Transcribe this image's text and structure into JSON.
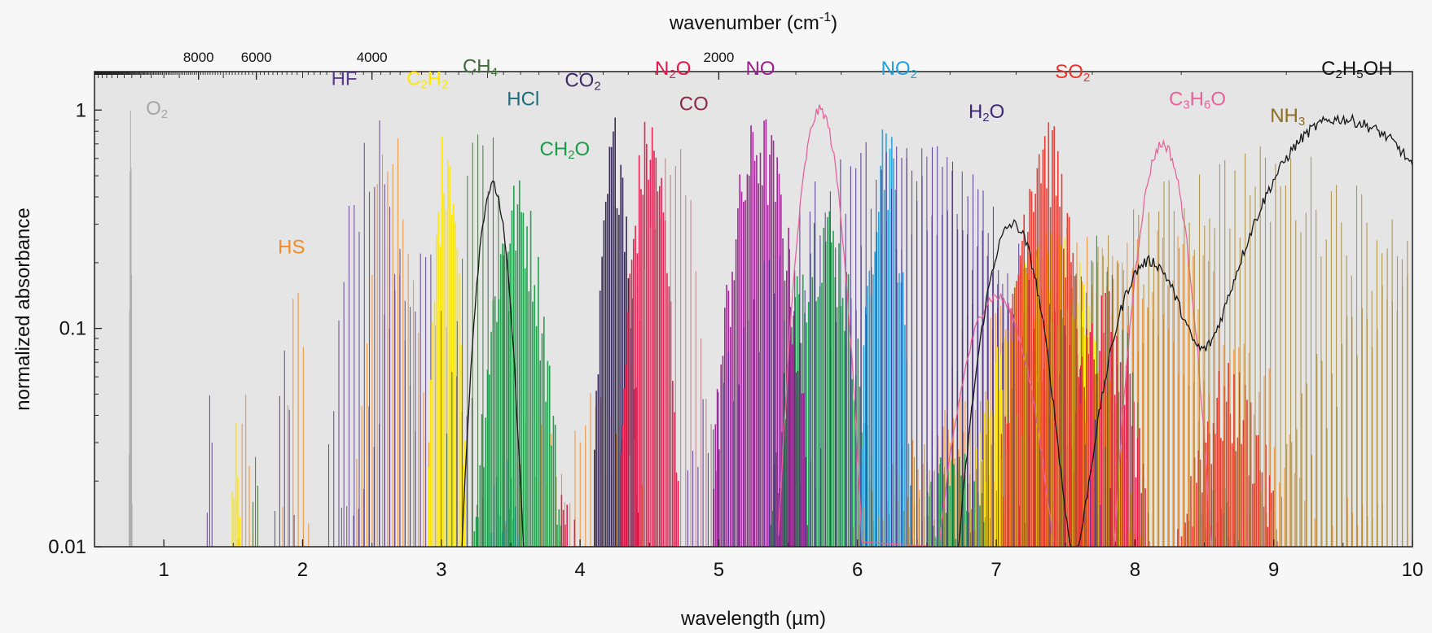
{
  "chart_data": {
    "type": "line",
    "title": "",
    "xlabel": "wavelength (µm)",
    "ylabel": "normalized absorbance",
    "x2label_base": "wavenumber (cm",
    "x2label_sup": "-1",
    "x2label_end": ")",
    "xlim": [
      0.5,
      10
    ],
    "ylim": [
      0.01,
      1.5
    ],
    "yscale": "log",
    "x_ticks": [
      1,
      2,
      3,
      4,
      5,
      6,
      7,
      8,
      9,
      10
    ],
    "x_tick_labels": [
      "1",
      "2",
      "3",
      "4",
      "5",
      "6",
      "7",
      "8",
      "9",
      "10"
    ],
    "y_ticks": [
      0.01,
      0.1,
      1
    ],
    "y_tick_labels": [
      "0.01",
      "0.1",
      "1"
    ],
    "x2_ticks": [
      8000,
      6000,
      4000,
      2000
    ],
    "x2_tick_labels": [
      "8000",
      "6000",
      "4000",
      "2000"
    ],
    "grid": false,
    "background": "#e5e5e5",
    "series": [
      {
        "name": "O₂",
        "color": "#a6a6a6",
        "style": "lines",
        "bands": [
          [
            0.76,
            0.004,
            1.0
          ]
        ]
      },
      {
        "name": "HS",
        "color": "#f28c28",
        "style": "lines",
        "bands": [
          [
            1.59,
            0.03,
            0.06
          ],
          [
            1.95,
            0.05,
            0.17
          ],
          [
            2.65,
            0.1,
            0.9
          ],
          [
            3.7,
            0.15,
            0.05
          ],
          [
            4.15,
            0.2,
            0.06
          ],
          [
            6.6,
            0.4,
            0.04
          ],
          [
            7.6,
            0.5,
            0.3
          ],
          [
            8.2,
            0.45,
            0.3
          ],
          [
            9.7,
            0.3,
            0.02
          ]
        ]
      },
      {
        "name": "HF",
        "color": "#5b3b8c",
        "style": "lines",
        "bands": [
          [
            1.33,
            0.02,
            0.05
          ],
          [
            1.87,
            0.04,
            0.08
          ],
          [
            2.5,
            0.12,
            1.0
          ],
          [
            2.85,
            0.2,
            0.3
          ],
          [
            6.5,
            0.35,
            0.7
          ],
          [
            7.1,
            0.3,
            0.2
          ]
        ]
      },
      {
        "name": "C₂H₂",
        "color": "#ffe600",
        "style": "fill",
        "bands": [
          [
            1.52,
            0.02,
            0.05
          ],
          [
            3.04,
            0.05,
            1.0
          ],
          [
            7.4,
            0.25,
            0.3
          ]
        ]
      },
      {
        "name": "CH₄",
        "color": "#3f6b3a",
        "style": "lines",
        "bands": [
          [
            1.66,
            0.02,
            0.03
          ],
          [
            2.3,
            0.05,
            0.02
          ],
          [
            3.3,
            0.1,
            1.0
          ],
          [
            7.65,
            0.2,
            0.3
          ]
        ]
      },
      {
        "name": "HCl",
        "color": "#1e9bd7",
        "style": "fill",
        "bands": [
          [
            3.46,
            0.08,
            0.03
          ]
        ]
      },
      {
        "name": "CO₂",
        "color": "#2c1f4d",
        "style": "fill",
        "bands": [
          [
            4.26,
            0.06,
            1.0
          ]
        ]
      },
      {
        "name": "CH₂O",
        "color": "#1a9b48",
        "style": "fill",
        "bands": [
          [
            3.55,
            0.12,
            0.5
          ],
          [
            5.75,
            0.15,
            0.4
          ],
          [
            6.7,
            0.2,
            0.03
          ],
          [
            8.6,
            0.15,
            0.02
          ]
        ]
      },
      {
        "name": "N₂O",
        "color": "#e8174a",
        "style": "fill",
        "bands": [
          [
            3.9,
            0.08,
            0.02
          ],
          [
            4.5,
            0.08,
            1.0
          ],
          [
            7.78,
            0.15,
            0.16
          ]
        ]
      },
      {
        "name": "CO",
        "color": "#b07882",
        "style": "lines",
        "bands": [
          [
            4.67,
            0.12,
            0.8
          ]
        ]
      },
      {
        "name": "NO",
        "color": "#9b1f8f",
        "style": "fill",
        "bands": [
          [
            5.3,
            0.13,
            1.0
          ]
        ]
      },
      {
        "name": "NO₂",
        "color": "#23a0dc",
        "style": "fill",
        "bands": [
          [
            6.2,
            0.07,
            1.0
          ]
        ]
      },
      {
        "name": "H₂O",
        "color": "#4b2d8e",
        "style": "lines",
        "bands": [
          [
            6.3,
            0.6,
            0.8
          ]
        ]
      },
      {
        "name": "SO₂",
        "color": "#e8352b",
        "style": "fill",
        "bands": [
          [
            7.35,
            0.12,
            1.0
          ],
          [
            8.68,
            0.2,
            0.07
          ]
        ]
      },
      {
        "name": "C₃H₆O",
        "color": "#e8639b",
        "style": "curve",
        "bands": [
          [
            5.73,
            0.1,
            1.0
          ],
          [
            7.0,
            0.18,
            0.14
          ],
          [
            8.2,
            0.12,
            0.7
          ]
        ]
      },
      {
        "name": "NH₃",
        "color": "#a88a34",
        "style": "lines",
        "bands": [
          [
            8.9,
            0.8,
            0.7
          ],
          [
            6.5,
            0.4,
            0.03
          ],
          [
            10.4,
            0.6,
            0.4
          ]
        ]
      },
      {
        "name": "C₂H₅OH",
        "color": "#151515",
        "style": "curve",
        "bands": [
          [
            3.37,
            0.08,
            0.45
          ],
          [
            7.12,
            0.15,
            0.3
          ],
          [
            8.1,
            0.2,
            0.2
          ],
          [
            9.45,
            0.4,
            0.9
          ],
          [
            9.95,
            0.2,
            0.2
          ]
        ]
      }
    ],
    "annotations": [
      {
        "text": "O₂",
        "color": "#a6a6a6",
        "x": 0.95,
        "y": 0.95
      },
      {
        "text": "HS",
        "color": "#f28c28",
        "x": 1.92,
        "y": 0.22
      },
      {
        "text": "HF",
        "color": "#5b3b8c",
        "x": 2.3,
        "y": 1.3
      },
      {
        "text": "C₂H₂",
        "color": "#ffe600",
        "x": 2.9,
        "y": 1.3
      },
      {
        "text": "CH₄",
        "color": "#3f6b3a",
        "x": 3.28,
        "y": 1.48
      },
      {
        "text": "HCl",
        "color": "#1e6b78",
        "x": 3.59,
        "y": 1.05
      },
      {
        "text": "CO₂",
        "color": "#3b2a63",
        "x": 4.02,
        "y": 1.28
      },
      {
        "text": "CH₂O",
        "color": "#1a9b48",
        "x": 3.89,
        "y": 0.62
      },
      {
        "text": "N₂O",
        "color": "#e8174a",
        "x": 4.67,
        "y": 1.45
      },
      {
        "text": "CO",
        "color": "#8b2a44",
        "x": 4.82,
        "y": 1.0
      },
      {
        "text": "NO",
        "color": "#9b1f8f",
        "x": 5.3,
        "y": 1.45
      },
      {
        "text": "NO₂",
        "color": "#23a0dc",
        "x": 6.3,
        "y": 1.45
      },
      {
        "text": "H₂O",
        "color": "#3b2a7a",
        "x": 6.93,
        "y": 0.92
      },
      {
        "text": "SO₂",
        "color": "#e8352b",
        "x": 7.55,
        "y": 1.4
      },
      {
        "text": "C₃H₆O",
        "color": "#e8639b",
        "x": 8.45,
        "y": 1.05
      },
      {
        "text": "NH₃",
        "color": "#8c6d22",
        "x": 9.1,
        "y": 0.88
      },
      {
        "text": "C₂H₅OH",
        "color": "#111111",
        "x": 9.6,
        "y": 1.45
      }
    ]
  }
}
